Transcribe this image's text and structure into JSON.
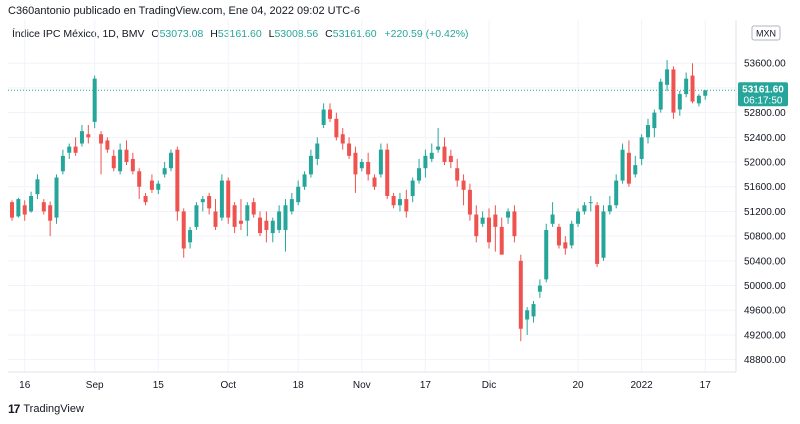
{
  "header": {
    "text": "C360antonio publicado en TradingView.com, Ene 04, 2022 09:02 UTC-6"
  },
  "legend": {
    "symbol": "Índice IPC México, 1D, BMV",
    "open_label": "O",
    "open": "53073.08",
    "high_label": "H",
    "high": "53161.60",
    "low_label": "L",
    "low": "53008.56",
    "close_label": "C",
    "close": "53161.60",
    "change": "+220.59 (+0.42%)"
  },
  "price_badge": {
    "price": "53161.60",
    "countdown": "06:17:50"
  },
  "currency_badge": "MXN",
  "footer": {
    "brand": "TradingView",
    "logo": "17"
  },
  "colors": {
    "up": "#26a69a",
    "down": "#ef5350",
    "grid": "#f0f3fa",
    "axis_text": "#131722",
    "last_line": "#26a69a"
  },
  "chart_data": {
    "type": "candlestick",
    "ylim": [
      48600,
      54300
    ],
    "y_ticks": [
      "48800.00",
      "49200.00",
      "49600.00",
      "50000.00",
      "50400.00",
      "50800.00",
      "51200.00",
      "51600.00",
      "52000.00",
      "52400.00",
      "52800.00",
      "53200.00",
      "53600.00"
    ],
    "x_ticks": [
      {
        "label": "16",
        "index": 2
      },
      {
        "label": "Sep",
        "index": 13
      },
      {
        "label": "15",
        "index": 23
      },
      {
        "label": "Oct",
        "index": 34
      },
      {
        "label": "18",
        "index": 45
      },
      {
        "label": "Nov",
        "index": 55
      },
      {
        "label": "17",
        "index": 65
      },
      {
        "label": "Dic",
        "index": 75
      },
      {
        "label": "20",
        "index": 89
      },
      {
        "label": "2022",
        "index": 99
      },
      {
        "label": "17",
        "index": 109
      }
    ],
    "candles": [
      [
        51350,
        51380,
        51050,
        51100
      ],
      [
        51120,
        51420,
        51100,
        51400
      ],
      [
        51300,
        51380,
        51050,
        51150
      ],
      [
        51200,
        51520,
        51180,
        51450
      ],
      [
        51480,
        51800,
        51400,
        51720
      ],
      [
        51350,
        51400,
        51150,
        51200
      ],
      [
        51300,
        51360,
        50800,
        51050
      ],
      [
        51100,
        51800,
        51000,
        51750
      ],
      [
        51850,
        52200,
        51800,
        52100
      ],
      [
        52150,
        52300,
        52050,
        52250
      ],
      [
        52250,
        52400,
        52100,
        52150
      ],
      [
        52300,
        52600,
        52250,
        52500
      ],
      [
        52450,
        52600,
        52300,
        52400
      ],
      [
        52650,
        53400,
        52550,
        53350
      ],
      [
        52450,
        52500,
        51800,
        52300
      ],
      [
        52350,
        52400,
        52150,
        52200
      ],
      [
        52100,
        52200,
        51850,
        51900
      ],
      [
        51850,
        52300,
        51800,
        52200
      ],
      [
        52200,
        52350,
        51950,
        52000
      ],
      [
        52050,
        52150,
        51800,
        51850
      ],
      [
        51850,
        51900,
        51400,
        51600
      ],
      [
        51450,
        51500,
        51300,
        51350
      ],
      [
        51700,
        51800,
        51500,
        51550
      ],
      [
        51550,
        51700,
        51480,
        51650
      ],
      [
        51800,
        52000,
        51750,
        51900
      ],
      [
        51900,
        52200,
        51850,
        52150
      ],
      [
        52200,
        52250,
        51050,
        51200
      ],
      [
        51200,
        51250,
        50450,
        50600
      ],
      [
        50700,
        50950,
        50600,
        50900
      ],
      [
        50950,
        51350,
        50900,
        51300
      ],
      [
        51350,
        51450,
        51200,
        51400
      ],
      [
        51450,
        51500,
        51150,
        51250
      ],
      [
        51200,
        51400,
        50900,
        50950
      ],
      [
        51100,
        51800,
        51050,
        51700
      ],
      [
        51700,
        51750,
        51000,
        51100
      ],
      [
        51300,
        51350,
        50850,
        50950
      ],
      [
        51050,
        51400,
        50900,
        51000
      ],
      [
        51050,
        51350,
        50800,
        51300
      ],
      [
        51350,
        51420,
        51100,
        51150
      ],
      [
        51100,
        51200,
        50800,
        50850
      ],
      [
        51050,
        51200,
        50700,
        50900
      ],
      [
        50850,
        51100,
        50700,
        51050
      ],
      [
        50900,
        51300,
        50850,
        51200
      ],
      [
        50900,
        51400,
        50550,
        51300
      ],
      [
        51200,
        51500,
        51150,
        51400
      ],
      [
        51350,
        51700,
        51300,
        51600
      ],
      [
        51600,
        51850,
        51550,
        51800
      ],
      [
        51800,
        52200,
        51750,
        52100
      ],
      [
        52050,
        52400,
        51950,
        52300
      ],
      [
        52600,
        52950,
        52550,
        52850
      ],
      [
        52850,
        52950,
        52650,
        52700
      ],
      [
        52700,
        52800,
        52350,
        52400
      ],
      [
        52450,
        52550,
        52200,
        52300
      ],
      [
        52300,
        52400,
        52050,
        52100
      ],
      [
        52150,
        52250,
        51500,
        51800
      ],
      [
        51900,
        52050,
        51850,
        52000
      ],
      [
        52000,
        52150,
        51700,
        51800
      ],
      [
        51750,
        51800,
        51550,
        51600
      ],
      [
        51800,
        52300,
        51750,
        52200
      ],
      [
        52200,
        52300,
        51400,
        51450
      ],
      [
        51450,
        51500,
        51250,
        51300
      ],
      [
        51300,
        51500,
        51200,
        51400
      ],
      [
        51400,
        51550,
        51100,
        51200
      ],
      [
        51450,
        51750,
        51350,
        51700
      ],
      [
        51700,
        52050,
        51650,
        51900
      ],
      [
        51900,
        52200,
        51750,
        52100
      ],
      [
        52050,
        52300,
        52000,
        52150
      ],
      [
        52200,
        52550,
        52150,
        52250
      ],
      [
        52250,
        52400,
        51950,
        52000
      ],
      [
        52100,
        52200,
        51900,
        52000
      ],
      [
        51900,
        52050,
        51600,
        51700
      ],
      [
        51700,
        51800,
        51300,
        51550
      ],
      [
        51550,
        51650,
        51050,
        51150
      ],
      [
        51150,
        51300,
        50700,
        50800
      ],
      [
        51000,
        51200,
        50950,
        51100
      ],
      [
        51100,
        51250,
        50600,
        50700
      ],
      [
        51150,
        51300,
        50550,
        50950
      ],
      [
        50950,
        51100,
        50500,
        50500
      ],
      [
        51100,
        51250,
        51000,
        51200
      ],
      [
        51200,
        51300,
        50700,
        50800
      ],
      [
        50400,
        50500,
        49100,
        49300
      ],
      [
        49450,
        49650,
        49200,
        49600
      ],
      [
        49500,
        49750,
        49400,
        49700
      ],
      [
        49900,
        50100,
        49800,
        50000
      ],
      [
        50100,
        51000,
        50050,
        50900
      ],
      [
        51000,
        51350,
        50950,
        51150
      ],
      [
        50950,
        51000,
        50600,
        50650
      ],
      [
        50700,
        50800,
        50500,
        50600
      ],
      [
        50650,
        51050,
        50600,
        51000
      ],
      [
        51000,
        51250,
        50950,
        51200
      ],
      [
        51200,
        51350,
        51150,
        51300
      ],
      [
        51350,
        51450,
        51200,
        51350
      ],
      [
        51300,
        51350,
        50300,
        50350
      ],
      [
        50450,
        51300,
        50400,
        51200
      ],
      [
        51200,
        51450,
        51150,
        51300
      ],
      [
        51300,
        51800,
        51250,
        51700
      ],
      [
        51700,
        52300,
        51650,
        52200
      ],
      [
        52150,
        52350,
        51600,
        51650
      ],
      [
        51800,
        52100,
        51750,
        51950
      ],
      [
        52050,
        52450,
        51950,
        52400
      ],
      [
        52400,
        52700,
        52300,
        52600
      ],
      [
        52550,
        52850,
        52400,
        52800
      ],
      [
        52850,
        53350,
        52800,
        53300
      ],
      [
        53250,
        53650,
        53150,
        53500
      ],
      [
        53500,
        53550,
        52700,
        52800
      ],
      [
        52850,
        53150,
        52750,
        53100
      ],
      [
        53100,
        53450,
        53050,
        53350
      ],
      [
        53400,
        53600,
        52950,
        52980
      ],
      [
        52950,
        53100,
        52900,
        53073
      ],
      [
        53073.08,
        53161.6,
        53008.56,
        53161.6
      ]
    ]
  }
}
